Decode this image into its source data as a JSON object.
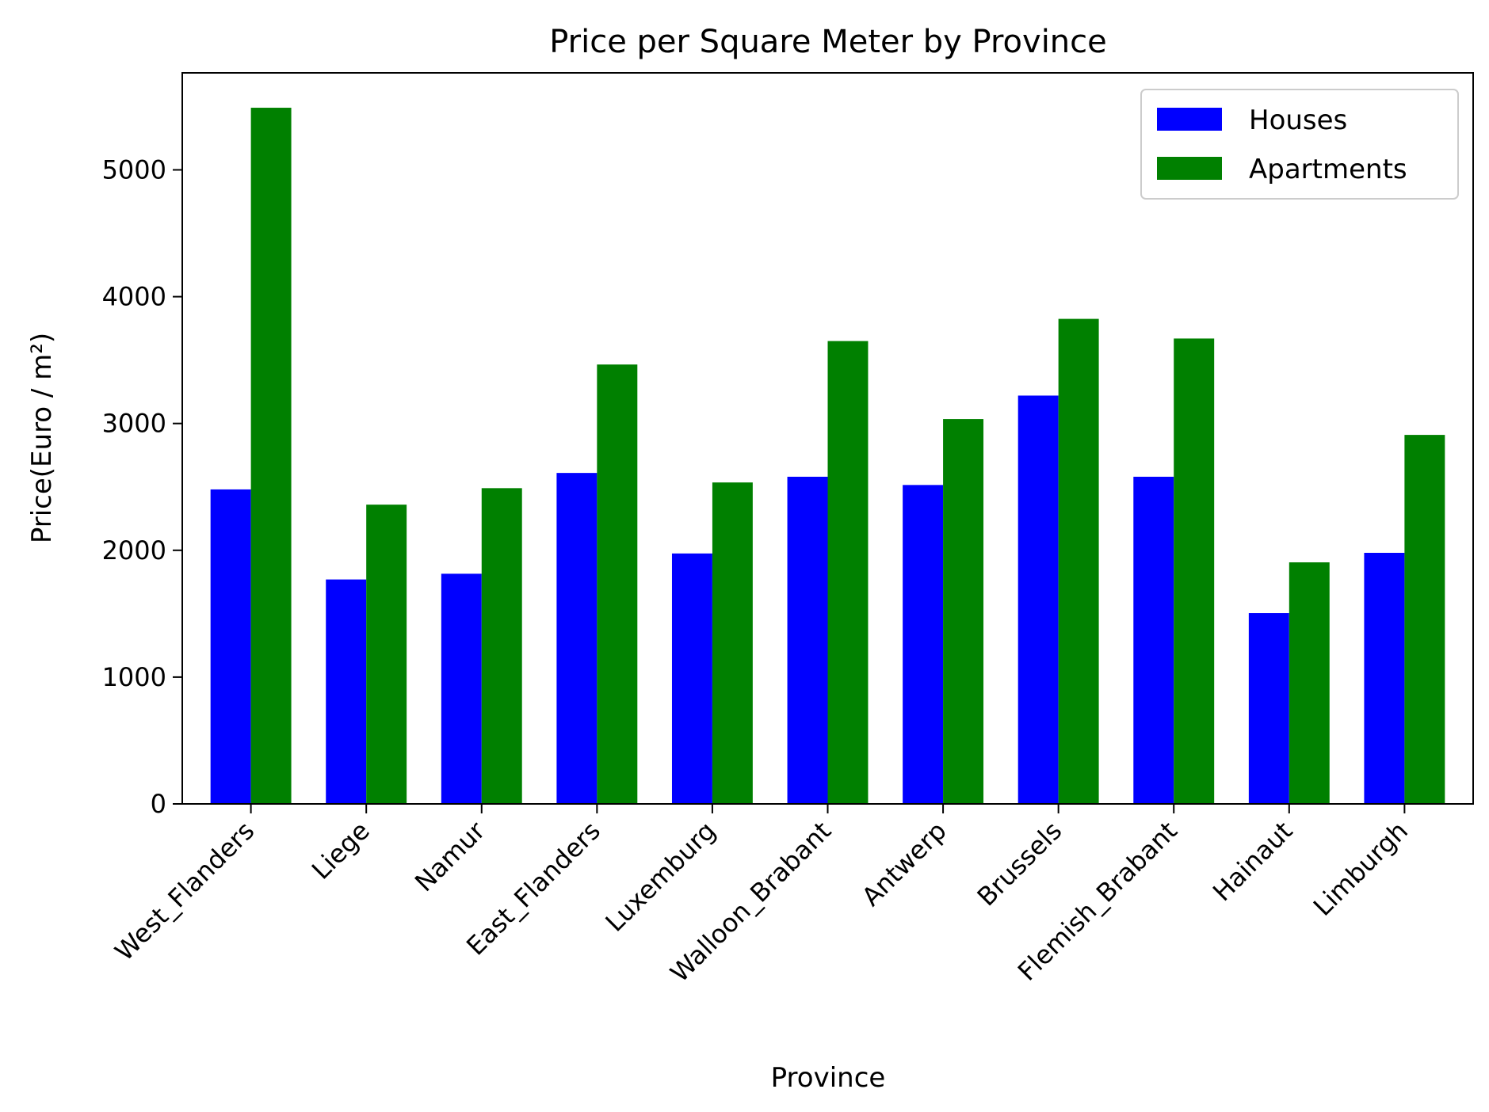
{
  "chart_data": {
    "type": "bar",
    "title": "Price per Square Meter by Province",
    "xlabel": "Province",
    "ylabel": "Price(Euro / m²)",
    "categories": [
      "West_Flanders",
      "Liege",
      "Namur",
      "East_Flanders",
      "Luxemburg",
      "Walloon_Brabant",
      "Antwerp",
      "Brussels",
      "Flemish_Brabant",
      "Hainaut",
      "Limburgh"
    ],
    "series": [
      {
        "name": "Houses",
        "color": "#0000ff",
        "values": [
          2480,
          1770,
          1815,
          2610,
          1975,
          2580,
          2515,
          3220,
          2580,
          1505,
          1980
        ]
      },
      {
        "name": "Apartments",
        "color": "#008000",
        "values": [
          5490,
          2360,
          2490,
          3465,
          2535,
          3650,
          3035,
          3825,
          3670,
          1905,
          2910
        ]
      }
    ],
    "ylim": [
      0,
      5765
    ],
    "yticks": [
      0,
      1000,
      2000,
      3000,
      4000,
      5000
    ],
    "legend_position": "top-right",
    "grid": false
  }
}
